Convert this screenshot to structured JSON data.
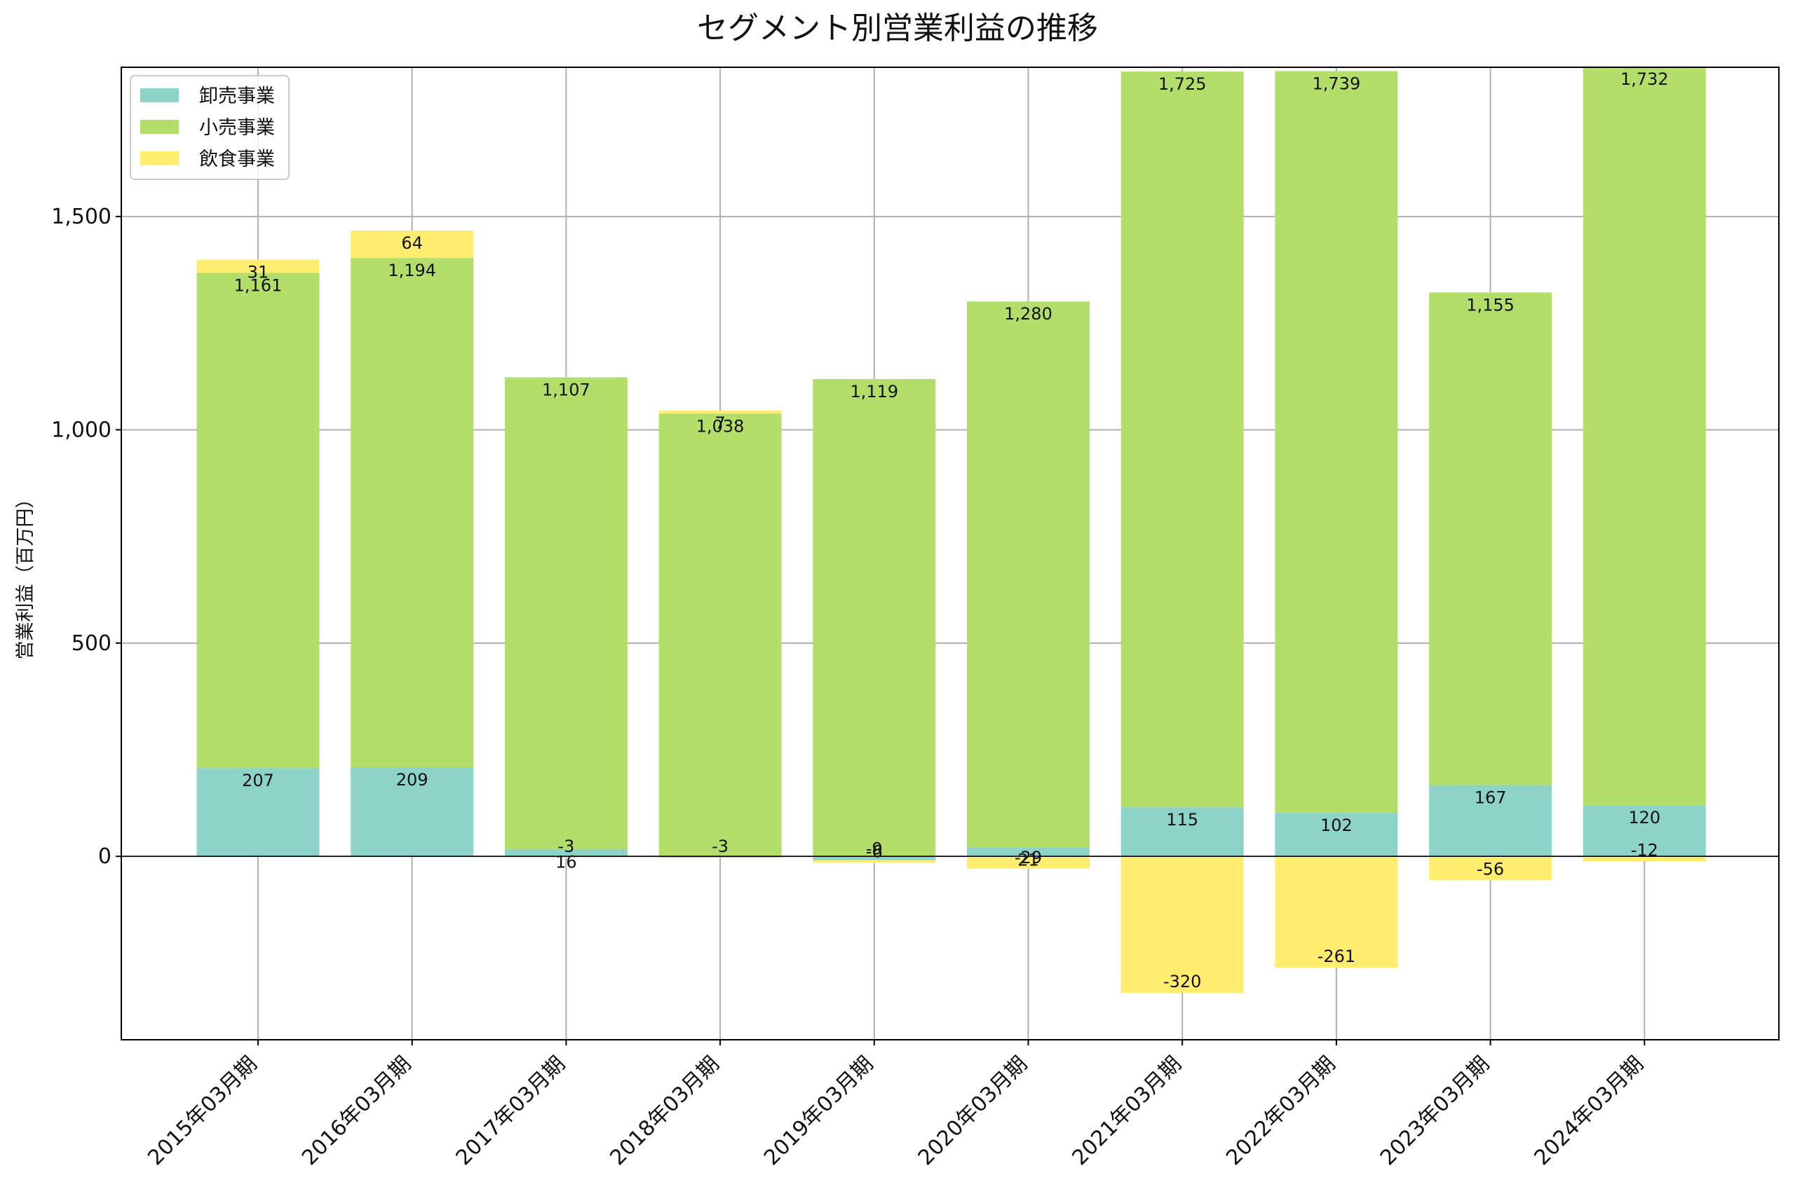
{
  "colors": {
    "wholesale": "#8dd3c7",
    "retail": "#b3de69",
    "food": "#ffed6f",
    "grid": "#b0b0b0",
    "axis": "#000000"
  },
  "chart_data": {
    "type": "bar",
    "stacked": true,
    "title": "セグメント別営業利益の推移",
    "xlabel": "",
    "ylabel": "営業利益（百万円）",
    "categories": [
      "2015年03月期",
      "2016年03月期",
      "2017年03月期",
      "2018年03月期",
      "2019年03月期",
      "2020年03月期",
      "2021年03月期",
      "2022年03月期",
      "2023年03月期",
      "2024年03月期"
    ],
    "series": [
      {
        "name": "卸売事業",
        "color": "#8dd3c7",
        "values": [
          207,
          209,
          16,
          -3,
          -9,
          21,
          115,
          102,
          167,
          120
        ]
      },
      {
        "name": "小売事業",
        "color": "#b3de69",
        "values": [
          1161,
          1194,
          1107,
          1038,
          1119,
          1280,
          1725,
          1739,
          1155,
          1732
        ]
      },
      {
        "name": "飲食事業",
        "color": "#ffed6f",
        "values": [
          31,
          64,
          -3,
          7,
          -6,
          -29,
          -320,
          -261,
          -56,
          -12
        ]
      }
    ],
    "ylim": [
      -430,
      1850
    ],
    "yticks": [
      0,
      500,
      1000,
      1500
    ],
    "ytick_labels": [
      "0",
      "500",
      "1,000",
      "1,500"
    ],
    "grid": true,
    "legend": "top-left"
  }
}
